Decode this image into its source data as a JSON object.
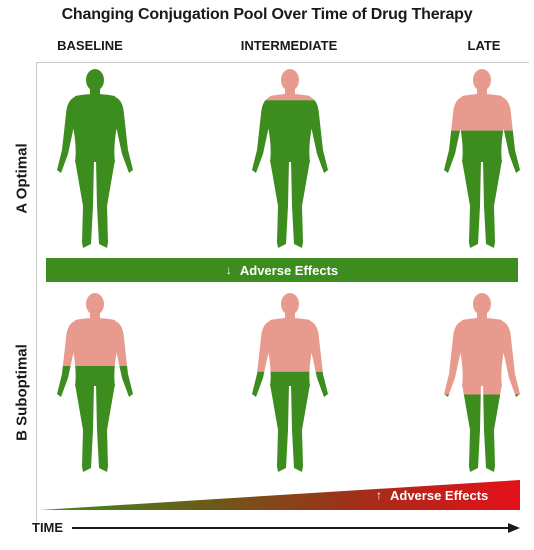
{
  "title": "Changing Conjugation Pool Over Time of Drug Therapy",
  "columns": [
    "BASELINE",
    "INTERMEDIATE",
    "LATE"
  ],
  "rows": {
    "optimal": "A Optimal",
    "suboptimal": "B Suboptimal"
  },
  "middle_bar": {
    "arrow": "↓",
    "label": "Adverse Effects"
  },
  "bottom_bar": {
    "arrow": "↑",
    "label": "Adverse Effects"
  },
  "axis": {
    "label": "TIME"
  },
  "colors": {
    "green": "#3c8d1e",
    "pink": "#e89a8f",
    "red": "#e4101a"
  },
  "figures": [
    {
      "row": "optimal",
      "column": "BASELINE",
      "pink_fraction": 0.0
    },
    {
      "row": "optimal",
      "column": "INTERMEDIATE",
      "pink_fraction": 0.18
    },
    {
      "row": "optimal",
      "column": "LATE",
      "pink_fraction": 0.34
    },
    {
      "row": "suboptimal",
      "column": "BASELINE",
      "pink_fraction": 0.4
    },
    {
      "row": "suboptimal",
      "column": "INTERMEDIATE",
      "pink_fraction": 0.43
    },
    {
      "row": "suboptimal",
      "column": "LATE",
      "pink_fraction": 0.55
    }
  ]
}
